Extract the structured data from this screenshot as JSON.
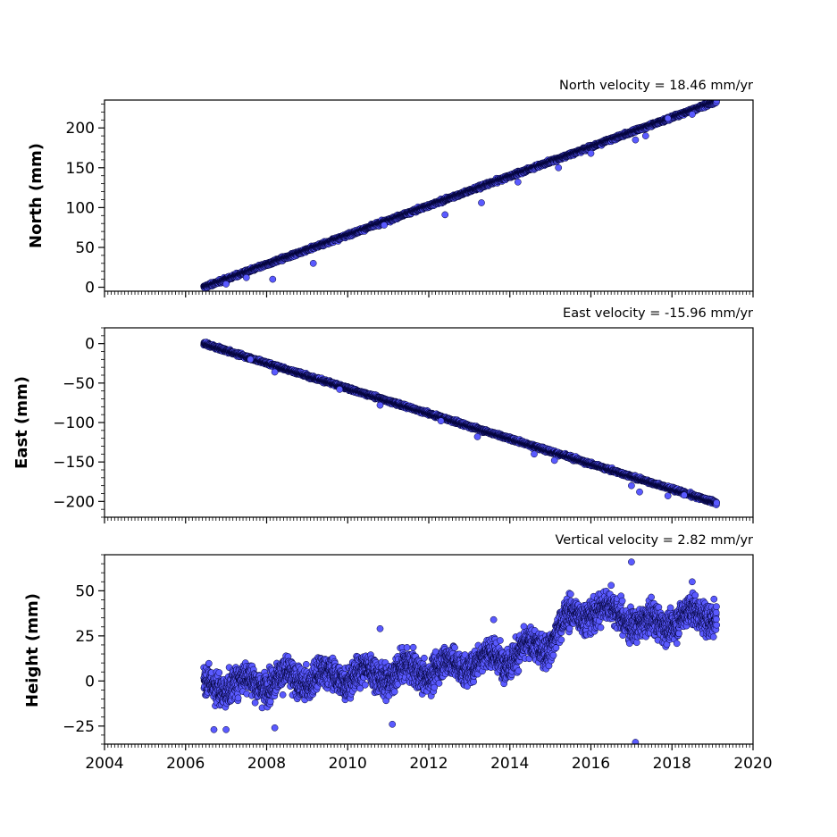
{
  "chart_data": [
    {
      "type": "scatter",
      "title": "North velocity = 18.46 mm/yr",
      "xlabel": "",
      "ylabel": "North (mm)",
      "xlim": [
        2004,
        2020
      ],
      "ylim": [
        -5,
        235
      ],
      "xticks": [
        2004,
        2006,
        2008,
        2010,
        2012,
        2014,
        2016,
        2018,
        2020
      ],
      "yticks": [
        0,
        50,
        100,
        150,
        200
      ],
      "ytick_labels": [
        "0",
        "50",
        "100",
        "150",
        "200"
      ],
      "show_x_tick_labels": false,
      "x_start": 2006.45,
      "x_end": 2019.1,
      "trend": {
        "slope_mm_per_yr": 18.46,
        "value_at_start": 0
      },
      "scatter_mm": 1.5,
      "outliers": [
        [
          2007.0,
          4
        ],
        [
          2007.5,
          12
        ],
        [
          2008.15,
          10
        ],
        [
          2009.15,
          30
        ],
        [
          2010.9,
          78
        ],
        [
          2012.4,
          91
        ],
        [
          2013.3,
          106
        ],
        [
          2014.2,
          132
        ],
        [
          2015.2,
          150
        ],
        [
          2016.0,
          168
        ],
        [
          2017.1,
          185
        ],
        [
          2017.35,
          190
        ],
        [
          2017.9,
          212
        ],
        [
          2018.5,
          217
        ]
      ],
      "marker_color": "#5a5aff",
      "marker_edge": "#000033",
      "grid": false,
      "legend": "none"
    },
    {
      "type": "scatter",
      "title": "East velocity = -15.96 mm/yr",
      "xlabel": "",
      "ylabel": "East (mm)",
      "xlim": [
        2004,
        2020
      ],
      "ylim": [
        -220,
        20
      ],
      "xticks": [
        2004,
        2006,
        2008,
        2010,
        2012,
        2014,
        2016,
        2018,
        2020
      ],
      "yticks": [
        0,
        -50,
        -100,
        -150,
        -200
      ],
      "ytick_labels": [
        "0",
        "−50",
        "−100",
        "−150",
        "−200"
      ],
      "show_x_tick_labels": false,
      "x_start": 2006.45,
      "x_end": 2019.1,
      "trend": {
        "slope_mm_per_yr": -15.96,
        "value_at_start": 0
      },
      "scatter_mm": 1.5,
      "outliers": [
        [
          2007.6,
          -20
        ],
        [
          2008.2,
          -36
        ],
        [
          2009.8,
          -58
        ],
        [
          2010.8,
          -78
        ],
        [
          2012.3,
          -98
        ],
        [
          2013.2,
          -118
        ],
        [
          2014.6,
          -140
        ],
        [
          2015.1,
          -148
        ],
        [
          2017.0,
          -180
        ],
        [
          2017.2,
          -188
        ],
        [
          2017.9,
          -193
        ],
        [
          2018.3,
          -192
        ]
      ],
      "marker_color": "#5a5aff",
      "marker_edge": "#000033",
      "grid": false,
      "legend": "none"
    },
    {
      "type": "scatter",
      "title": "Vertical velocity = 2.82 mm/yr",
      "xlabel": "",
      "ylabel": "Height (mm)",
      "xlim": [
        2004,
        2020
      ],
      "ylim": [
        -35,
        70
      ],
      "xticks": [
        2004,
        2006,
        2008,
        2010,
        2012,
        2014,
        2016,
        2018,
        2020
      ],
      "yticks": [
        50,
        25,
        0,
        -25
      ],
      "ytick_labels": [
        "50",
        "25",
        "0",
        "−25"
      ],
      "xtick_labels": [
        "2004",
        "2006",
        "2008",
        "2010",
        "2012",
        "2014",
        "2016",
        "2018",
        "2020"
      ],
      "show_x_tick_labels": true,
      "x_start": 2006.45,
      "x_end": 2019.1,
      "mean_profile": [
        [
          2006.45,
          -3
        ],
        [
          2008.0,
          0
        ],
        [
          2010.0,
          3
        ],
        [
          2011.0,
          4
        ],
        [
          2012.0,
          6
        ],
        [
          2013.0,
          10
        ],
        [
          2014.0,
          14
        ],
        [
          2014.9,
          20
        ],
        [
          2015.3,
          32
        ],
        [
          2016.0,
          40
        ],
        [
          2016.9,
          36
        ],
        [
          2017.3,
          30
        ],
        [
          2018.0,
          34
        ],
        [
          2019.1,
          38
        ]
      ],
      "scatter_mm": 6,
      "outliers": [
        [
          2017.0,
          66
        ],
        [
          2017.1,
          -34
        ],
        [
          2006.7,
          -27
        ],
        [
          2007.0,
          -27
        ],
        [
          2008.2,
          -26
        ],
        [
          2011.1,
          -24
        ],
        [
          2010.8,
          29
        ],
        [
          2013.6,
          34
        ],
        [
          2016.5,
          53
        ],
        [
          2018.5,
          55
        ]
      ],
      "marker_color": "#5a5aff",
      "marker_edge": "#000033",
      "grid": false,
      "legend": "none"
    }
  ]
}
